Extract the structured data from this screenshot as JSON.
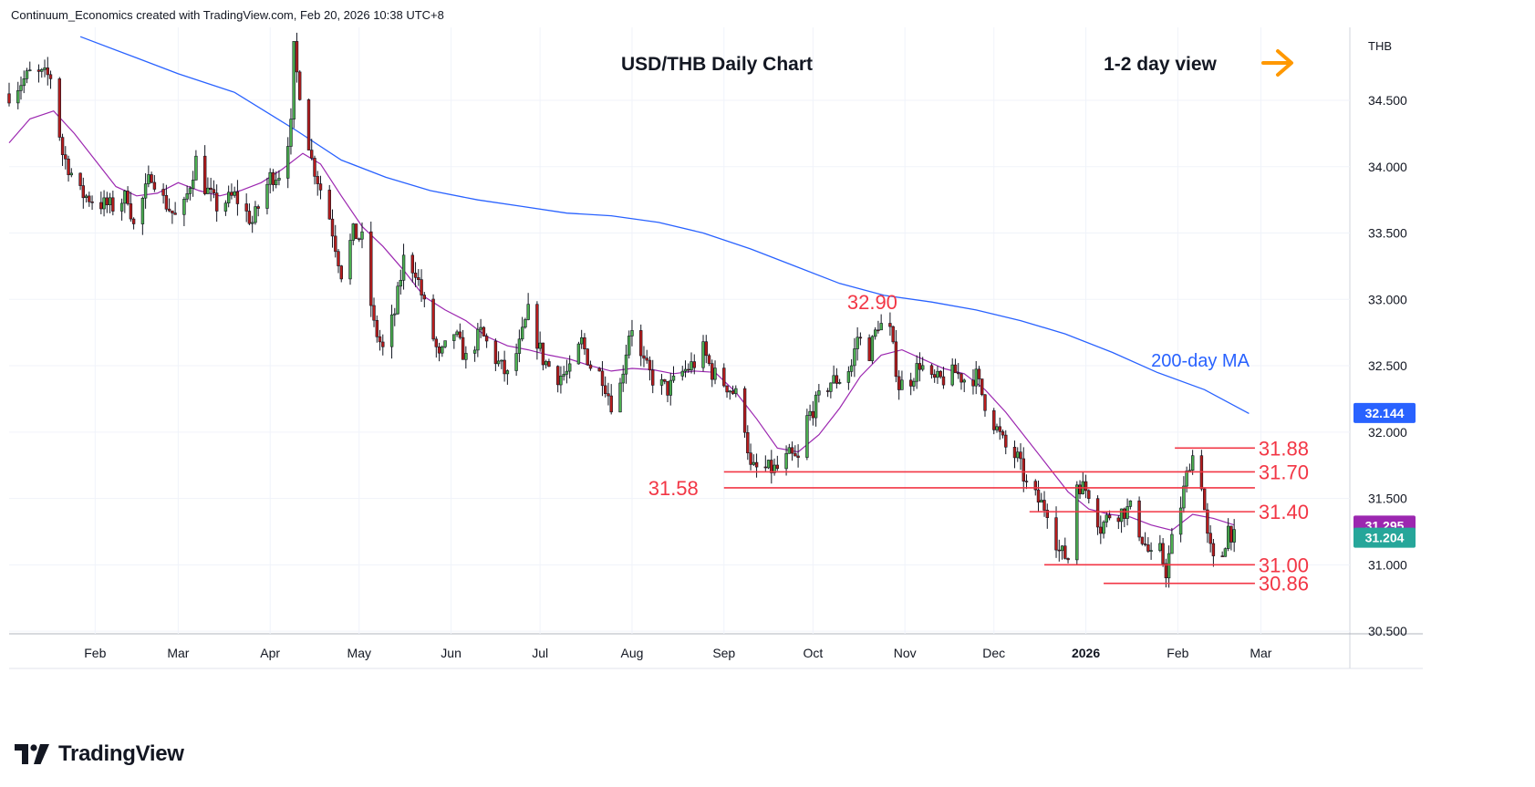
{
  "header": {
    "attribution": "Continuum_Economics created with TradingView.com, Feb 20, 2026 10:38 UTC+8"
  },
  "brand": {
    "name": "TradingView",
    "icon": "tradingview-logo-icon"
  },
  "chart_data": {
    "type": "candlestick",
    "title": "USD/THB Daily Chart",
    "view_label": "1-2 day view",
    "view_icon": "arrow-right-icon",
    "currency_label": "THB",
    "ma_label": "200-day MA",
    "y_ticks": [
      "30.500",
      "31.000",
      "31.500",
      "32.000",
      "32.500",
      "33.000",
      "33.500",
      "34.000",
      "34.500"
    ],
    "y_tick_values": [
      30.5,
      31.0,
      31.5,
      32.0,
      32.5,
      33.0,
      33.5,
      34.0,
      34.5
    ],
    "ylim": [
      30.48,
      35.05
    ],
    "x_ticks": [
      "Feb",
      "Mar",
      "Apr",
      "May",
      "Jun",
      "Jul",
      "Aug",
      "Sep",
      "Oct",
      "Nov",
      "Dec",
      "2026",
      "Feb",
      "Mar"
    ],
    "x_tick_dates": [
      "2025-02-01",
      "2025-03-01",
      "2025-04-01",
      "2025-05-01",
      "2025-06-01",
      "2025-07-01",
      "2025-08-01",
      "2025-09-01",
      "2025-10-01",
      "2025-11-01",
      "2025-12-01",
      "2026-01-01",
      "2026-02-01",
      "2026-03-01"
    ],
    "xlim": [
      "2025-01-03",
      "2026-03-31"
    ],
    "price_badges": [
      {
        "label": "32.144",
        "value": 32.144,
        "color": "#2962ff"
      },
      {
        "label": "31.295",
        "value": 31.295,
        "color": "#9c27b0"
      },
      {
        "label": "31.204",
        "value": 31.204,
        "color": "#26a69a"
      }
    ],
    "levels": [
      {
        "label": "31.88",
        "value": 31.88,
        "from": "2026-01-31",
        "to": "2026-02-27",
        "side": "right"
      },
      {
        "label": "31.70",
        "value": 31.7,
        "from": "2025-09-01",
        "to": "2026-02-27",
        "side": "right"
      },
      {
        "label": "31.58",
        "value": 31.58,
        "from": "2025-09-01",
        "to": "2026-02-27",
        "side": "left"
      },
      {
        "label": "31.40",
        "value": 31.4,
        "from": "2025-12-13",
        "to": "2026-02-27",
        "side": "right"
      },
      {
        "label": "31.00",
        "value": 31.0,
        "from": "2025-12-18",
        "to": "2026-02-27",
        "side": "right"
      },
      {
        "label": "30.86",
        "value": 30.86,
        "from": "2026-01-07",
        "to": "2026-02-27",
        "side": "right"
      }
    ],
    "annotations": [
      {
        "label": "32.90",
        "date": "2025-10-21",
        "value": 32.9
      }
    ],
    "ma200": [
      [
        "2025-01-27",
        34.98
      ],
      [
        "2025-02-15",
        34.82
      ],
      [
        "2025-03-01",
        34.7
      ],
      [
        "2025-03-20",
        34.56
      ],
      [
        "2025-04-10",
        34.27
      ],
      [
        "2025-04-25",
        34.05
      ],
      [
        "2025-05-10",
        33.92
      ],
      [
        "2025-05-25",
        33.82
      ],
      [
        "2025-06-10",
        33.75
      ],
      [
        "2025-06-25",
        33.7
      ],
      [
        "2025-07-10",
        33.65
      ],
      [
        "2025-07-25",
        33.63
      ],
      [
        "2025-08-10",
        33.58
      ],
      [
        "2025-08-25",
        33.5
      ],
      [
        "2025-09-10",
        33.38
      ],
      [
        "2025-09-25",
        33.25
      ],
      [
        "2025-10-10",
        33.12
      ],
      [
        "2025-10-25",
        33.03
      ],
      [
        "2025-11-10",
        32.98
      ],
      [
        "2025-11-25",
        32.92
      ],
      [
        "2025-12-10",
        32.84
      ],
      [
        "2025-12-25",
        32.74
      ],
      [
        "2026-01-10",
        32.6
      ],
      [
        "2026-01-25",
        32.45
      ],
      [
        "2026-02-10",
        32.32
      ],
      [
        "2026-02-25",
        32.14
      ]
    ],
    "ma_short": [
      [
        "2025-01-03",
        34.18
      ],
      [
        "2025-01-10",
        34.36
      ],
      [
        "2025-01-18",
        34.42
      ],
      [
        "2025-01-25",
        34.25
      ],
      [
        "2025-02-01",
        34.05
      ],
      [
        "2025-02-08",
        33.85
      ],
      [
        "2025-02-15",
        33.78
      ],
      [
        "2025-02-22",
        33.8
      ],
      [
        "2025-03-01",
        33.88
      ],
      [
        "2025-03-08",
        33.82
      ],
      [
        "2025-03-15",
        33.78
      ],
      [
        "2025-03-22",
        33.82
      ],
      [
        "2025-03-29",
        33.88
      ],
      [
        "2025-04-05",
        33.98
      ],
      [
        "2025-04-12",
        34.1
      ],
      [
        "2025-04-18",
        34.02
      ],
      [
        "2025-04-25",
        33.78
      ],
      [
        "2025-05-02",
        33.55
      ],
      [
        "2025-05-09",
        33.4
      ],
      [
        "2025-05-16",
        33.22
      ],
      [
        "2025-05-23",
        33.02
      ],
      [
        "2025-05-30",
        32.92
      ],
      [
        "2025-06-06",
        32.84
      ],
      [
        "2025-06-13",
        32.72
      ],
      [
        "2025-06-20",
        32.65
      ],
      [
        "2025-06-27",
        32.62
      ],
      [
        "2025-07-04",
        32.58
      ],
      [
        "2025-07-11",
        32.55
      ],
      [
        "2025-07-18",
        32.5
      ],
      [
        "2025-07-25",
        32.46
      ],
      [
        "2025-08-01",
        32.48
      ],
      [
        "2025-08-08",
        32.47
      ],
      [
        "2025-08-15",
        32.44
      ],
      [
        "2025-08-22",
        32.46
      ],
      [
        "2025-08-29",
        32.45
      ],
      [
        "2025-09-05",
        32.3
      ],
      [
        "2025-09-12",
        32.1
      ],
      [
        "2025-09-19",
        31.88
      ],
      [
        "2025-09-26",
        31.85
      ],
      [
        "2025-10-03",
        31.98
      ],
      [
        "2025-10-10",
        32.18
      ],
      [
        "2025-10-17",
        32.42
      ],
      [
        "2025-10-24",
        32.58
      ],
      [
        "2025-10-31",
        32.62
      ],
      [
        "2025-11-07",
        32.55
      ],
      [
        "2025-11-14",
        32.48
      ],
      [
        "2025-11-21",
        32.44
      ],
      [
        "2025-11-28",
        32.32
      ],
      [
        "2025-12-05",
        32.15
      ],
      [
        "2025-12-12",
        31.95
      ],
      [
        "2025-12-19",
        31.75
      ],
      [
        "2025-12-26",
        31.55
      ],
      [
        "2026-01-02",
        31.42
      ],
      [
        "2026-01-09",
        31.38
      ],
      [
        "2026-01-16",
        31.36
      ],
      [
        "2026-01-23",
        31.3
      ],
      [
        "2026-01-30",
        31.26
      ],
      [
        "2026-02-06",
        31.38
      ],
      [
        "2026-02-13",
        31.35
      ],
      [
        "2026-02-20",
        31.3
      ]
    ],
    "anchors": [
      [
        "2025-01-03",
        34.55
      ],
      [
        "2025-01-10",
        34.7
      ],
      [
        "2025-01-17",
        34.68
      ],
      [
        "2025-01-21",
        34.1
      ],
      [
        "2025-01-27",
        33.8
      ],
      [
        "2025-02-03",
        33.72
      ],
      [
        "2025-02-07",
        33.7
      ],
      [
        "2025-02-12",
        33.78
      ],
      [
        "2025-02-14",
        33.55
      ],
      [
        "2025-02-20",
        33.95
      ],
      [
        "2025-02-24",
        33.75
      ],
      [
        "2025-02-28",
        33.62
      ],
      [
        "2025-03-03",
        33.7
      ],
      [
        "2025-03-07",
        34.05
      ],
      [
        "2025-03-10",
        33.85
      ],
      [
        "2025-03-14",
        33.7
      ],
      [
        "2025-03-20",
        33.78
      ],
      [
        "2025-03-26",
        33.58
      ],
      [
        "2025-04-01",
        33.92
      ],
      [
        "2025-04-04",
        33.95
      ],
      [
        "2025-04-08",
        34.3
      ],
      [
        "2025-04-09",
        34.88
      ],
      [
        "2025-04-10",
        34.7
      ],
      [
        "2025-04-15",
        34.05
      ],
      [
        "2025-04-21",
        33.62
      ],
      [
        "2025-04-25",
        33.2
      ],
      [
        "2025-04-29",
        33.5
      ],
      [
        "2025-05-02",
        33.45
      ],
      [
        "2025-05-06",
        32.8
      ],
      [
        "2025-05-09",
        32.62
      ],
      [
        "2025-05-13",
        32.9
      ],
      [
        "2025-05-16",
        33.3
      ],
      [
        "2025-05-20",
        33.22
      ],
      [
        "2025-05-23",
        32.95
      ],
      [
        "2025-05-28",
        32.55
      ],
      [
        "2025-06-02",
        32.75
      ],
      [
        "2025-06-06",
        32.55
      ],
      [
        "2025-06-11",
        32.75
      ],
      [
        "2025-06-16",
        32.55
      ],
      [
        "2025-06-20",
        32.42
      ],
      [
        "2025-06-24",
        32.65
      ],
      [
        "2025-06-27",
        32.9
      ],
      [
        "2025-07-02",
        32.55
      ],
      [
        "2025-07-07",
        32.42
      ],
      [
        "2025-07-11",
        32.45
      ],
      [
        "2025-07-15",
        32.68
      ],
      [
        "2025-07-18",
        32.5
      ],
      [
        "2025-07-22",
        32.42
      ],
      [
        "2025-07-25",
        32.22
      ],
      [
        "2025-07-28",
        32.35
      ],
      [
        "2025-07-31",
        32.75
      ],
      [
        "2025-08-01",
        32.8
      ],
      [
        "2025-08-04",
        32.55
      ],
      [
        "2025-08-08",
        32.4
      ],
      [
        "2025-08-13",
        32.32
      ],
      [
        "2025-08-18",
        32.45
      ],
      [
        "2025-08-22",
        32.52
      ],
      [
        "2025-08-25",
        32.62
      ],
      [
        "2025-08-28",
        32.45
      ],
      [
        "2025-09-02",
        32.35
      ],
      [
        "2025-09-05",
        32.28
      ],
      [
        "2025-09-08",
        32.05
      ],
      [
        "2025-09-10",
        31.72
      ],
      [
        "2025-09-15",
        31.72
      ],
      [
        "2025-09-19",
        31.72
      ],
      [
        "2025-09-23",
        31.82
      ],
      [
        "2025-09-26",
        31.78
      ],
      [
        "2025-09-29",
        32.1
      ],
      [
        "2025-10-03",
        32.25
      ],
      [
        "2025-10-07",
        32.38
      ],
      [
        "2025-10-10",
        32.4
      ],
      [
        "2025-10-14",
        32.5
      ],
      [
        "2025-10-16",
        32.72
      ],
      [
        "2025-10-20",
        32.6
      ],
      [
        "2025-10-23",
        32.82
      ],
      [
        "2025-10-27",
        32.75
      ],
      [
        "2025-10-30",
        32.35
      ],
      [
        "2025-11-03",
        32.4
      ],
      [
        "2025-11-06",
        32.52
      ],
      [
        "2025-11-10",
        32.38
      ],
      [
        "2025-11-14",
        32.4
      ],
      [
        "2025-11-18",
        32.45
      ],
      [
        "2025-11-21",
        32.4
      ],
      [
        "2025-11-25",
        32.42
      ],
      [
        "2025-11-28",
        32.22
      ],
      [
        "2025-12-02",
        32.02
      ],
      [
        "2025-12-05",
        31.88
      ],
      [
        "2025-12-09",
        31.8
      ],
      [
        "2025-12-12",
        31.6
      ],
      [
        "2025-12-16",
        31.48
      ],
      [
        "2025-12-19",
        31.42
      ],
      [
        "2025-12-23",
        31.1
      ],
      [
        "2025-12-26",
        31.05
      ],
      [
        "2025-12-29",
        31.62
      ],
      [
        "2026-01-02",
        31.55
      ],
      [
        "2026-01-06",
        31.28
      ],
      [
        "2026-01-09",
        31.38
      ],
      [
        "2026-01-13",
        31.4
      ],
      [
        "2026-01-16",
        31.42
      ],
      [
        "2026-01-20",
        31.2
      ],
      [
        "2026-01-23",
        31.05
      ],
      [
        "2026-01-26",
        31.1
      ],
      [
        "2026-01-28",
        30.95
      ],
      [
        "2026-01-30",
        31.18
      ],
      [
        "2026-02-02",
        31.45
      ],
      [
        "2026-02-05",
        31.78
      ],
      [
        "2026-02-06",
        31.82
      ],
      [
        "2026-02-09",
        31.62
      ],
      [
        "2026-02-11",
        31.2
      ],
      [
        "2026-02-13",
        31.02
      ],
      [
        "2026-02-16",
        31.08
      ],
      [
        "2026-02-18",
        31.28
      ],
      [
        "2026-02-20",
        31.2
      ]
    ],
    "color_up": "#26a69a",
    "color_up_body": "#4caf50",
    "color_down": "#b71c1c",
    "color_wick": "#131722",
    "ma200_color": "#2962ff",
    "ma_short_color": "#9c27b0",
    "level_color": "#f23645",
    "annotation_color": "#f23645",
    "arrow_color": "#ff9800"
  }
}
